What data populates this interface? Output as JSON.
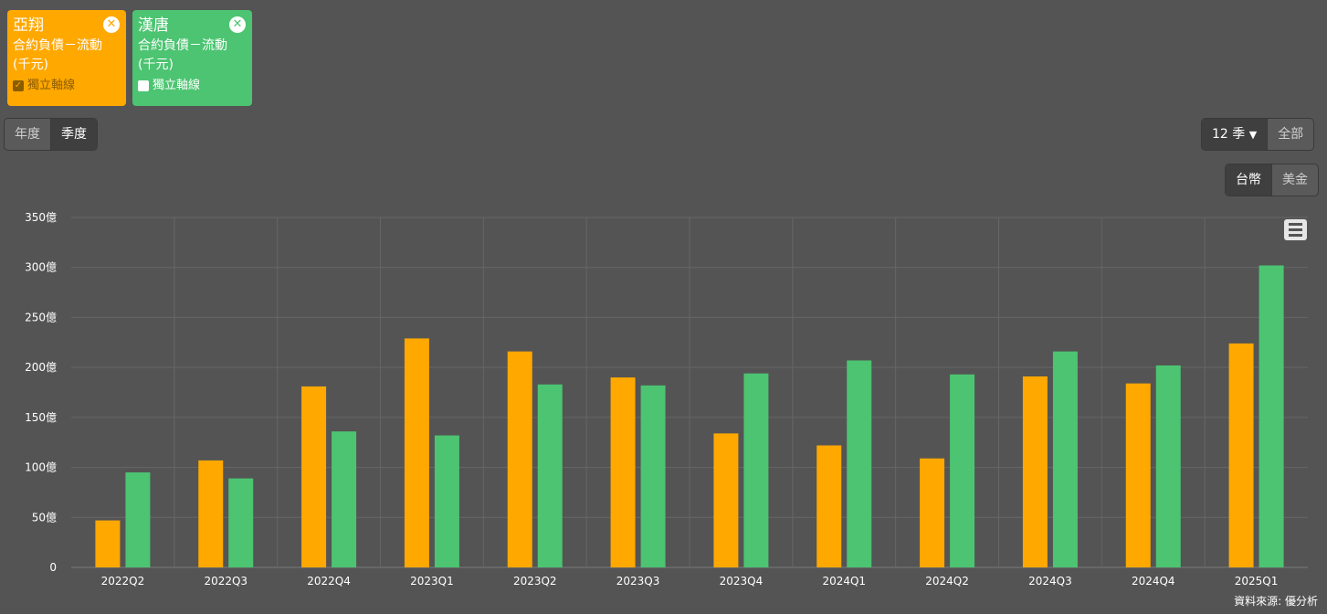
{
  "cards": [
    {
      "company": "亞翔",
      "metric": "合約負債－流動",
      "unit": "(千元)",
      "axis_label": "獨立軸線",
      "axis_checked": true,
      "color": "#ffa800"
    },
    {
      "company": "漢唐",
      "metric": "合約負債－流動",
      "unit": "(千元)",
      "axis_label": "獨立軸線",
      "axis_checked": false,
      "color": "#4cc471"
    }
  ],
  "period_toggle": {
    "year": "年度",
    "quarter": "季度",
    "active": "季度"
  },
  "range": {
    "selected": "12 季",
    "all": "全部"
  },
  "currency": {
    "twd": "台幣",
    "usd": "美金",
    "active": "台幣"
  },
  "source": "資料來源: 優分析",
  "chart_data": {
    "type": "bar",
    "categories": [
      "2022Q2",
      "2022Q3",
      "2022Q4",
      "2023Q1",
      "2023Q2",
      "2023Q3",
      "2023Q4",
      "2024Q1",
      "2024Q2",
      "2024Q3",
      "2024Q4",
      "2025Q1"
    ],
    "series": [
      {
        "name": "亞翔",
        "color": "#ffa800",
        "values": [
          47,
          107,
          181,
          229,
          216,
          190,
          134,
          122,
          109,
          191,
          184,
          224
        ]
      },
      {
        "name": "漢唐",
        "color": "#4cc471",
        "values": [
          95,
          89,
          136,
          132,
          183,
          182,
          194,
          207,
          193,
          216,
          202,
          302
        ]
      }
    ],
    "ylim": [
      0,
      350
    ],
    "yticks": [
      "0",
      "50億",
      "100億",
      "150億",
      "200億",
      "250億",
      "300億",
      "350億"
    ],
    "grid": true,
    "legend": "top-left"
  }
}
